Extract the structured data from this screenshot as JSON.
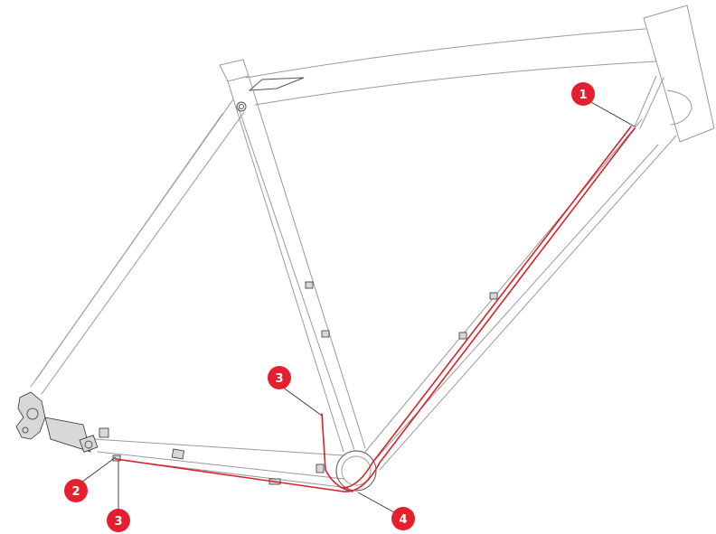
{
  "diagram": {
    "callouts": [
      {
        "label": "1"
      },
      {
        "label": "2"
      },
      {
        "label": "3"
      },
      {
        "label": "3"
      },
      {
        "label": "4"
      }
    ]
  },
  "colors": {
    "cable": "#d8232a",
    "callout_fill": "#e5202e",
    "frame_line": "#9a9a9a"
  }
}
